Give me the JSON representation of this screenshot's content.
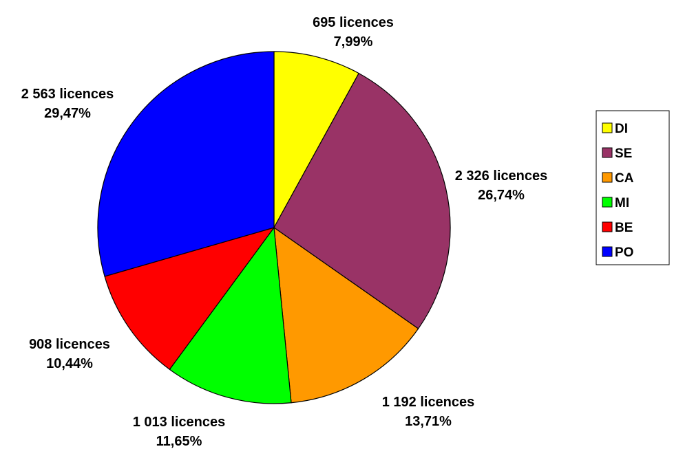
{
  "chart_data": {
    "type": "pie",
    "title": "",
    "legend_position": "right",
    "slices": [
      {
        "label": "DI",
        "count_text": "695 licences",
        "percent_text": "7,99%",
        "value": 695,
        "percent": 7.99,
        "color": "#ffff00"
      },
      {
        "label": "SE",
        "count_text": "2 326 licences",
        "percent_text": "26,74%",
        "value": 2326,
        "percent": 26.74,
        "color": "#993366"
      },
      {
        "label": "CA",
        "count_text": "1 192 licences",
        "percent_text": "13,71%",
        "value": 1192,
        "percent": 13.71,
        "color": "#ff9900"
      },
      {
        "label": "MI",
        "count_text": "1 013 licences",
        "percent_text": "11,65%",
        "value": 1013,
        "percent": 11.65,
        "color": "#00ff00"
      },
      {
        "label": "BE",
        "count_text": "908 licences",
        "percent_text": "10,44%",
        "value": 908,
        "percent": 10.44,
        "color": "#ff0000"
      },
      {
        "label": "PO",
        "count_text": "2 563 licences",
        "percent_text": "29,47%",
        "value": 2563,
        "percent": 29.47,
        "color": "#0000ff"
      }
    ]
  }
}
